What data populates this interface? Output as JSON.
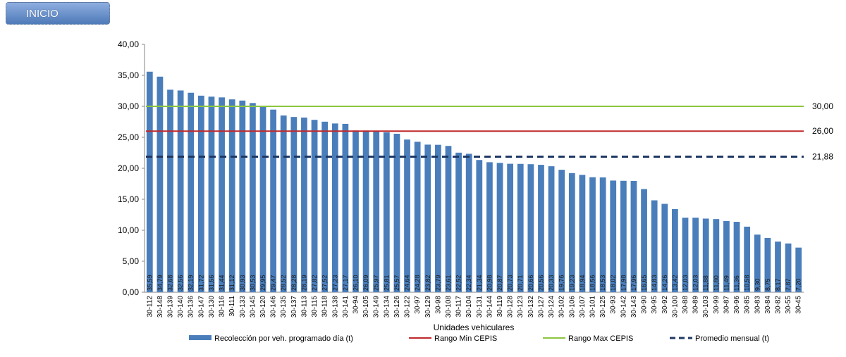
{
  "nav": {
    "inicio_label": "INICIO"
  },
  "chart_data": {
    "type": "bar",
    "xlabel": "Unidades vehiculares",
    "ylabel": "",
    "ylim": [
      0,
      40
    ],
    "ytick_labels": [
      "0,00",
      "5,00",
      "10,00",
      "15,00",
      "20,00",
      "25,00",
      "30,00",
      "35,00",
      "40,00"
    ],
    "grid": false,
    "legend_position": "bottom",
    "categories": [
      "30-112",
      "30-148",
      "30-139",
      "30-140",
      "30-136",
      "30-147",
      "30-130",
      "30-116",
      "30-111",
      "30-133",
      "30-145",
      "30-120",
      "30-146",
      "30-135",
      "30-137",
      "30-113",
      "30-115",
      "30-118",
      "30-138",
      "30-141",
      "30-94",
      "30-105",
      "30-149",
      "30-134",
      "30-126",
      "30-122",
      "30-97",
      "30-129",
      "30-98",
      "30-108",
      "30-117",
      "30-104",
      "30-131",
      "30-144",
      "30-119",
      "30-128",
      "30-123",
      "30-132",
      "30-127",
      "30-124",
      "30-102",
      "30-106",
      "30-107",
      "30-101",
      "30-125",
      "30-93",
      "30-142",
      "30-143",
      "30-90",
      "30-95",
      "30-92",
      "30-100",
      "30-88",
      "30-89",
      "30-103",
      "30-99",
      "30-87",
      "30-96",
      "30-85",
      "30-83",
      "30-84",
      "30-82",
      "30-55",
      "30-45"
    ],
    "series": [
      {
        "name": "Recolección por veh. programado día (t)",
        "type": "bar",
        "color": "#4a7ebb",
        "values": [
          35.59,
          34.79,
          32.68,
          32.56,
          32.19,
          31.72,
          31.56,
          31.44,
          31.12,
          30.93,
          30.53,
          29.95,
          29.47,
          28.52,
          28.28,
          28.19,
          27.82,
          27.52,
          27.23,
          27.17,
          26.1,
          26.09,
          25.97,
          25.81,
          25.57,
          24.64,
          24.28,
          23.82,
          23.79,
          23.61,
          22.52,
          22.34,
          21.34,
          20.98,
          20.87,
          20.73,
          20.71,
          20.66,
          20.56,
          20.33,
          19.76,
          19.23,
          18.94,
          18.56,
          18.53,
          18.02,
          17.98,
          17.96,
          16.65,
          14.83,
          14.26,
          13.42,
          12.03,
          12.03,
          11.88,
          11.8,
          11.49,
          11.36,
          10.58,
          9.3,
          8.75,
          8.17,
          7.87,
          7.2
        ],
        "value_labels": [
          "35,59",
          "34,79",
          "32,68",
          "32,56",
          "32,19",
          "31,72",
          "31,56",
          "31,44",
          "31,12",
          "30,93",
          "30,53",
          "29,95",
          "29,47",
          "28,52",
          "28,28",
          "28,19",
          "27,82",
          "27,52",
          "27,23",
          "27,17",
          "26,10",
          "26,09",
          "25,97",
          "25,81",
          "25,57",
          "24,64",
          "24,28",
          "23,82",
          "23,79",
          "23,61",
          "22,52",
          "22,34",
          "21,34",
          "20,98",
          "20,87",
          "20,73",
          "20,71",
          "20,66",
          "20,56",
          "20,33",
          "19,76",
          "19,23",
          "18,94",
          "18,56",
          "18,53",
          "18,02",
          "17,98",
          "17,96",
          "16,65",
          "14,83",
          "14,26",
          "13,42",
          "12,03",
          "12,03",
          "11,88",
          "11,80",
          "11,49",
          "11,36",
          "10,58",
          "9,30",
          "8,75",
          "8,17",
          "7,87",
          "7,20"
        ]
      },
      {
        "name": "Rango Min CEPIS",
        "type": "line",
        "color": "#c0282a",
        "value": 26.0,
        "label": "26,00"
      },
      {
        "name": "Rango Max CEPIS",
        "type": "line",
        "color": "#8cc63f",
        "value": 30.0,
        "label": "30,00"
      },
      {
        "name": "Promedio mensual (t)",
        "type": "dashed-line",
        "color": "#1f3864",
        "value": 21.88,
        "label": "21,88"
      }
    ]
  }
}
